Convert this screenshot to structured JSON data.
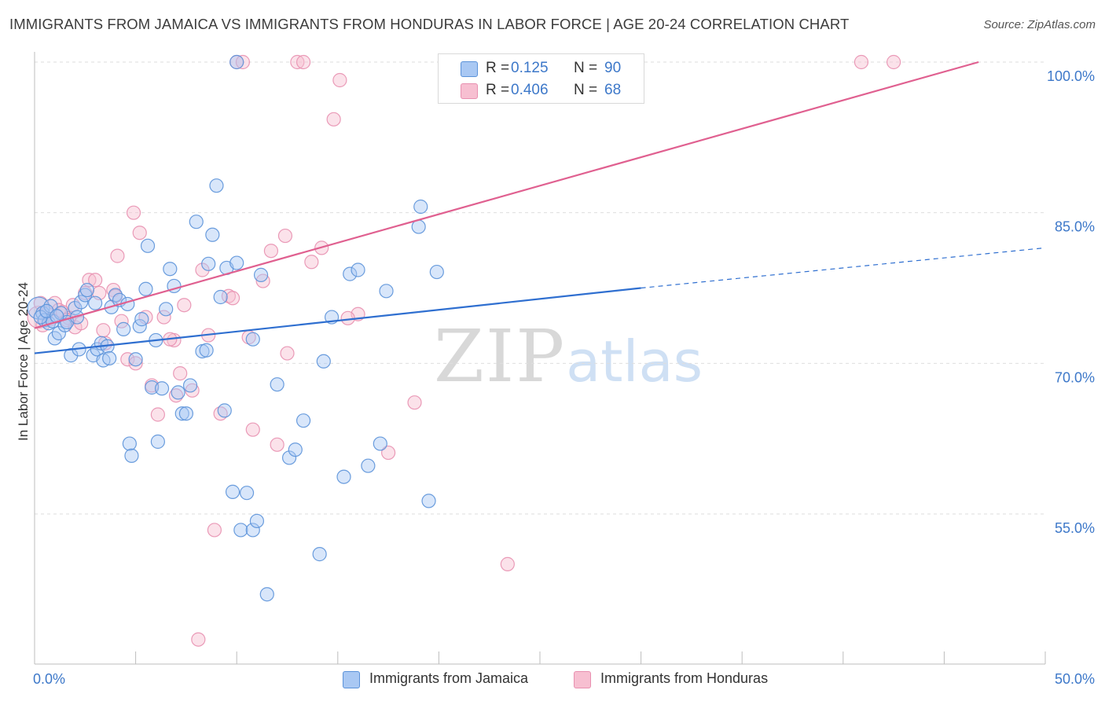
{
  "title": "IMMIGRANTS FROM JAMAICA VS IMMIGRANTS FROM HONDURAS IN LABOR FORCE | AGE 20-24 CORRELATION CHART",
  "source": "Source: ZipAtlas.com",
  "watermark": {
    "zip": "ZIP",
    "atlas": "atlas"
  },
  "legend_top": {
    "rows": [
      {
        "r_label": "R =",
        "r_value": "0.125",
        "n_label": "N =",
        "n_value": "90"
      },
      {
        "r_label": "R =",
        "r_value": "0.406",
        "n_label": "N =",
        "n_value": "68"
      }
    ]
  },
  "legend_bottom": [
    "Immigrants from Jamaica",
    "Immigrants from Honduras"
  ],
  "colors": {
    "jamaica_fill": "#a9c8f3",
    "jamaica_stroke": "#5b92d9",
    "jamaica_line": "#2f6fd0",
    "honduras_fill": "#f7bfd1",
    "honduras_stroke": "#e890b0",
    "honduras_line": "#e06090",
    "tick_text": "#3d78c9",
    "grid": "#dedede"
  },
  "chart_data": {
    "type": "scatter",
    "title": "IMMIGRANTS FROM JAMAICA VS IMMIGRANTS FROM HONDURAS IN LABOR FORCE | AGE 20-24 CORRELATION CHART",
    "xlabel": "",
    "ylabel": "In Labor Force | Age 20-24",
    "xlim": [
      0,
      50
    ],
    "ylim": [
      41,
      102
    ],
    "x_tick_labels": [
      "0.0%",
      "50.0%"
    ],
    "y_tick_values": [
      55,
      70,
      85,
      100
    ],
    "y_tick_labels": [
      "55.0%",
      "70.0%",
      "85.0%",
      "100.0%"
    ],
    "grid": true,
    "legend": "top-center",
    "series": [
      {
        "name": "Immigrants from Jamaica",
        "R": 0.125,
        "N": 90,
        "trend": {
          "x": [
            0,
            30
          ],
          "y": [
            71.0,
            77.5
          ],
          "dashed_extension_to": [
            50,
            81.5
          ]
        },
        "points": [
          [
            0.2,
            75.5
          ],
          [
            0.4,
            75.0
          ],
          [
            0.5,
            74.3
          ],
          [
            0.7,
            74.0
          ],
          [
            0.8,
            75.7
          ],
          [
            0.9,
            74.2
          ],
          [
            1.0,
            72.5
          ],
          [
            1.2,
            73.0
          ],
          [
            1.3,
            75.0
          ],
          [
            1.5,
            73.8
          ],
          [
            1.6,
            74.1
          ],
          [
            1.8,
            70.8
          ],
          [
            2.0,
            75.5
          ],
          [
            2.1,
            74.6
          ],
          [
            2.3,
            76.1
          ],
          [
            2.5,
            76.8
          ],
          [
            2.6,
            77.3
          ],
          [
            2.9,
            70.8
          ],
          [
            3.1,
            71.4
          ],
          [
            3.3,
            72.0
          ],
          [
            3.4,
            70.3
          ],
          [
            3.6,
            71.7
          ],
          [
            3.8,
            75.6
          ],
          [
            4.0,
            76.8
          ],
          [
            4.2,
            76.3
          ],
          [
            4.6,
            75.9
          ],
          [
            4.7,
            62.0
          ],
          [
            4.8,
            60.8
          ],
          [
            5.0,
            70.4
          ],
          [
            5.2,
            73.7
          ],
          [
            5.5,
            77.4
          ],
          [
            5.6,
            81.7
          ],
          [
            5.8,
            67.6
          ],
          [
            6.0,
            72.3
          ],
          [
            6.1,
            62.2
          ],
          [
            6.5,
            75.4
          ],
          [
            6.7,
            79.4
          ],
          [
            6.9,
            77.7
          ],
          [
            7.1,
            67.1
          ],
          [
            7.3,
            65.0
          ],
          [
            7.5,
            65.0
          ],
          [
            7.7,
            67.8
          ],
          [
            8.0,
            84.1
          ],
          [
            8.3,
            71.2
          ],
          [
            8.6,
            79.9
          ],
          [
            8.8,
            82.8
          ],
          [
            9.0,
            87.7
          ],
          [
            9.2,
            76.6
          ],
          [
            9.5,
            79.5
          ],
          [
            9.8,
            57.2
          ],
          [
            10.0,
            80.0
          ],
          [
            10.2,
            53.4
          ],
          [
            10.5,
            57.1
          ],
          [
            10.8,
            53.4
          ],
          [
            11.0,
            54.3
          ],
          [
            11.2,
            78.8
          ],
          [
            11.5,
            47.0
          ],
          [
            12.0,
            67.9
          ],
          [
            12.6,
            60.6
          ],
          [
            12.9,
            61.4
          ],
          [
            13.3,
            64.3
          ],
          [
            14.1,
            51.0
          ],
          [
            14.3,
            70.2
          ],
          [
            14.7,
            74.6
          ],
          [
            15.3,
            58.7
          ],
          [
            15.6,
            78.9
          ],
          [
            16.0,
            79.3
          ],
          [
            16.5,
            59.8
          ],
          [
            17.1,
            62.0
          ],
          [
            17.4,
            77.2
          ],
          [
            19.0,
            83.6
          ],
          [
            19.1,
            85.6
          ],
          [
            19.5,
            56.3
          ],
          [
            19.9,
            79.1
          ],
          [
            0.3,
            74.6
          ],
          [
            0.6,
            75.2
          ],
          [
            1.1,
            74.7
          ],
          [
            2.2,
            71.4
          ],
          [
            3.0,
            76.0
          ],
          [
            4.4,
            73.4
          ],
          [
            5.3,
            74.4
          ],
          [
            6.3,
            67.5
          ],
          [
            8.5,
            71.3
          ],
          [
            10.8,
            72.4
          ],
          [
            20.5,
            100
          ],
          [
            28.0,
            100
          ],
          [
            10.0,
            100
          ],
          [
            21.0,
            100
          ],
          [
            3.7,
            70.5
          ],
          [
            9.4,
            65.3
          ]
        ]
      },
      {
        "name": "Immigrants from Honduras",
        "R": 0.406,
        "N": 68,
        "trend": {
          "x": [
            0,
            46.7
          ],
          "y": [
            73.5,
            100.0
          ]
        },
        "points": [
          [
            0.2,
            74.6
          ],
          [
            0.4,
            73.8
          ],
          [
            0.6,
            75.0
          ],
          [
            0.8,
            74.4
          ],
          [
            1.0,
            76.0
          ],
          [
            1.2,
            75.3
          ],
          [
            1.4,
            75.1
          ],
          [
            1.7,
            74.5
          ],
          [
            2.0,
            73.6
          ],
          [
            2.3,
            74.0
          ],
          [
            2.7,
            78.3
          ],
          [
            3.0,
            78.3
          ],
          [
            3.2,
            77.0
          ],
          [
            3.5,
            72.0
          ],
          [
            3.9,
            77.3
          ],
          [
            4.1,
            80.7
          ],
          [
            4.3,
            74.2
          ],
          [
            4.6,
            70.4
          ],
          [
            4.9,
            85.0
          ],
          [
            5.2,
            83.0
          ],
          [
            5.5,
            74.6
          ],
          [
            5.8,
            67.8
          ],
          [
            6.1,
            64.9
          ],
          [
            6.4,
            74.6
          ],
          [
            6.9,
            72.3
          ],
          [
            7.2,
            69.0
          ],
          [
            7.4,
            75.8
          ],
          [
            7.8,
            67.3
          ],
          [
            8.3,
            79.3
          ],
          [
            8.6,
            72.8
          ],
          [
            8.9,
            53.4
          ],
          [
            9.2,
            65.0
          ],
          [
            9.6,
            76.7
          ],
          [
            10.0,
            100
          ],
          [
            10.3,
            100
          ],
          [
            10.8,
            63.4
          ],
          [
            11.3,
            78.2
          ],
          [
            11.7,
            81.2
          ],
          [
            12.0,
            61.9
          ],
          [
            12.4,
            82.7
          ],
          [
            13.0,
            100
          ],
          [
            13.3,
            100
          ],
          [
            13.7,
            80.1
          ],
          [
            14.2,
            81.5
          ],
          [
            14.8,
            94.3
          ],
          [
            15.1,
            98.2
          ],
          [
            16.0,
            74.9
          ],
          [
            17.5,
            61.1
          ],
          [
            18.8,
            66.1
          ],
          [
            20.5,
            100
          ],
          [
            23.4,
            50.0
          ],
          [
            27.5,
            100
          ],
          [
            40.9,
            100
          ],
          [
            42.5,
            100
          ],
          [
            0.3,
            76.0
          ],
          [
            1.6,
            74.3
          ],
          [
            2.5,
            77.0
          ],
          [
            4.0,
            76.7
          ],
          [
            6.7,
            72.4
          ],
          [
            9.8,
            76.5
          ],
          [
            10.6,
            72.6
          ],
          [
            12.5,
            71.0
          ],
          [
            15.5,
            74.5
          ],
          [
            8.1,
            42.5
          ],
          [
            1.9,
            75.8
          ],
          [
            3.4,
            73.3
          ],
          [
            5.0,
            70.0
          ],
          [
            7.0,
            66.8
          ]
        ]
      }
    ]
  }
}
